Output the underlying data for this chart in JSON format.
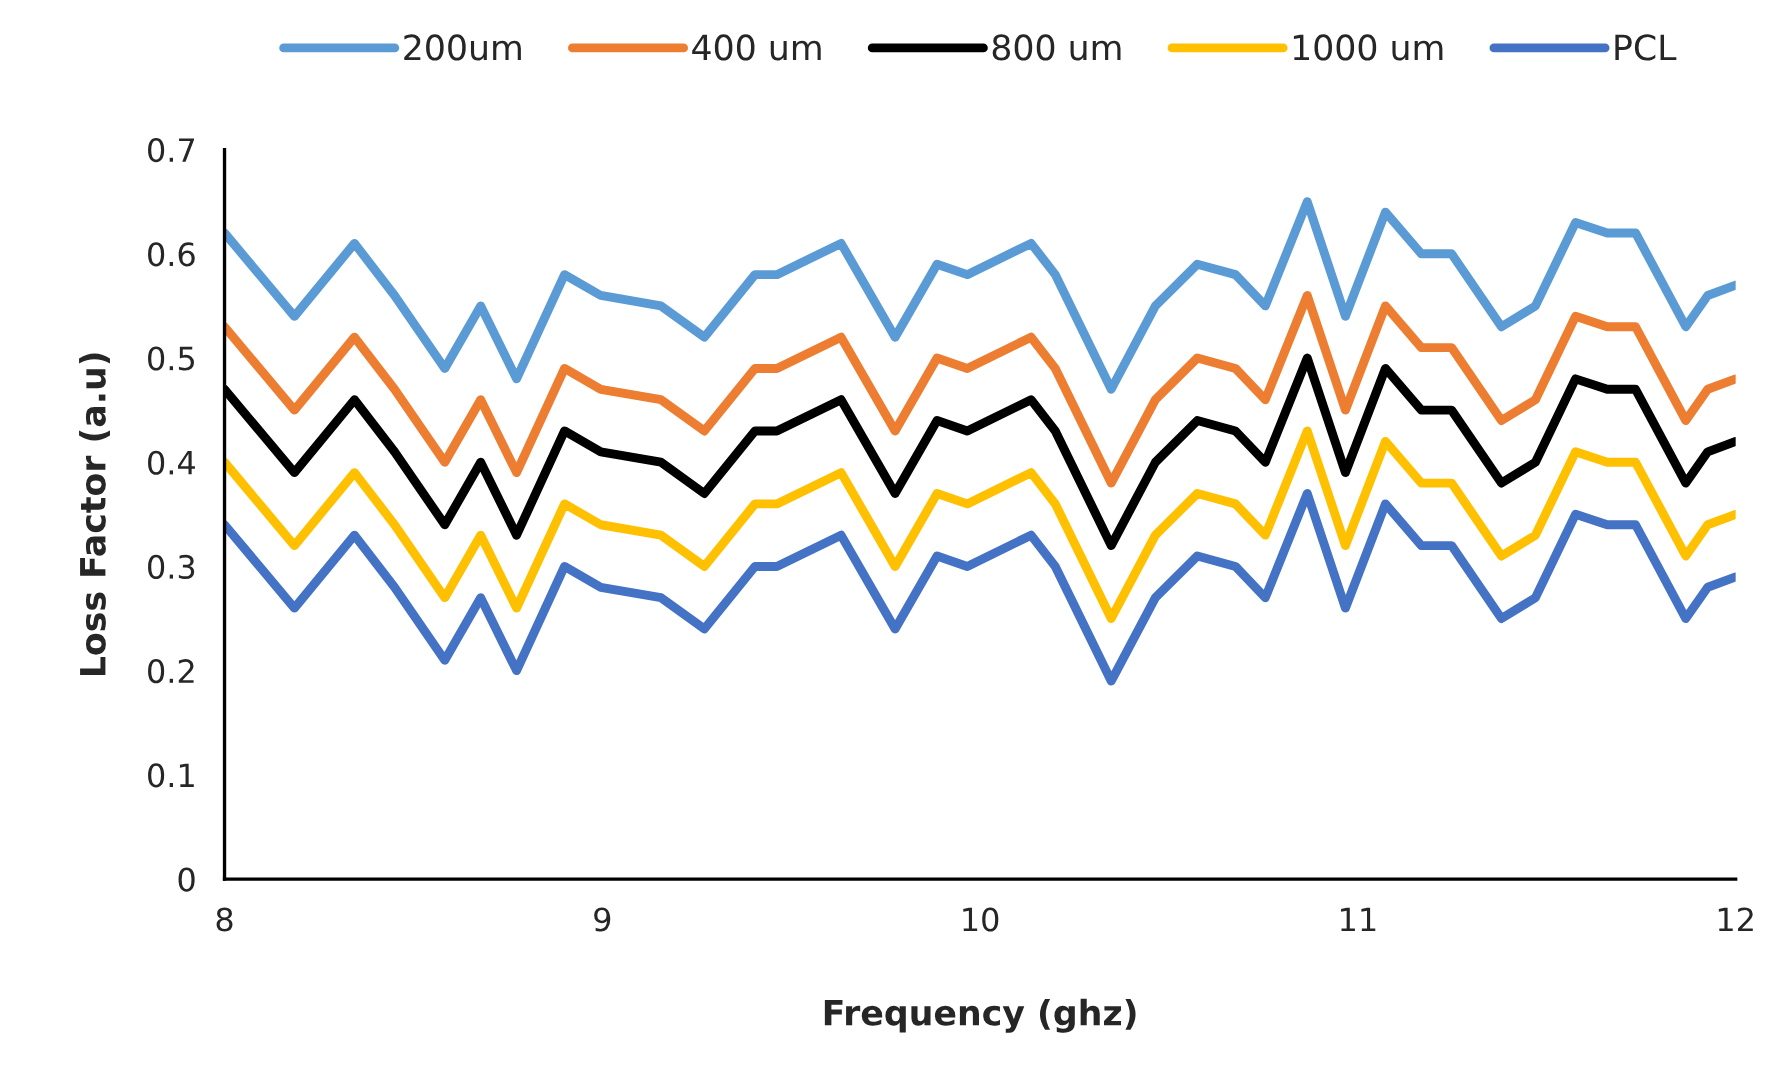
{
  "chart_data": {
    "type": "line",
    "xlabel": "Frequency (ghz)",
    "ylabel": "Loss Factor (a.u)",
    "x": [
      8.0,
      8.185,
      8.344,
      8.45,
      8.583,
      8.678,
      8.773,
      8.9,
      8.996,
      9.155,
      9.27,
      9.404,
      9.462,
      9.632,
      9.775,
      9.886,
      9.966,
      10.135,
      10.199,
      10.347,
      10.464,
      10.575,
      10.676,
      10.755,
      10.866,
      10.967,
      11.073,
      11.168,
      11.248,
      11.38,
      11.47,
      11.576,
      11.66,
      11.735,
      11.868,
      11.926,
      12.0
    ],
    "series": [
      {
        "name": "200um",
        "color": "#5b9bd5",
        "values": [
          0.62,
          0.54,
          0.61,
          0.56,
          0.49,
          0.55,
          0.48,
          0.58,
          0.56,
          0.55,
          0.52,
          0.58,
          0.58,
          0.61,
          0.52,
          0.59,
          0.58,
          0.61,
          0.58,
          0.47,
          0.55,
          0.59,
          0.58,
          0.55,
          0.65,
          0.54,
          0.64,
          0.6,
          0.6,
          0.53,
          0.55,
          0.63,
          0.62,
          0.62,
          0.53,
          0.56,
          0.57
        ]
      },
      {
        "name": "400 um",
        "color": "#ed7d31",
        "values": [
          0.53,
          0.45,
          0.52,
          0.47,
          0.4,
          0.46,
          0.39,
          0.49,
          0.47,
          0.46,
          0.43,
          0.49,
          0.49,
          0.52,
          0.43,
          0.5,
          0.49,
          0.52,
          0.49,
          0.38,
          0.46,
          0.5,
          0.49,
          0.46,
          0.56,
          0.45,
          0.55,
          0.51,
          0.51,
          0.44,
          0.46,
          0.54,
          0.53,
          0.53,
          0.44,
          0.47,
          0.48
        ]
      },
      {
        "name": "800 um",
        "color": "#000000",
        "values": [
          0.47,
          0.39,
          0.46,
          0.41,
          0.34,
          0.4,
          0.33,
          0.43,
          0.41,
          0.4,
          0.37,
          0.43,
          0.43,
          0.46,
          0.37,
          0.44,
          0.43,
          0.46,
          0.43,
          0.32,
          0.4,
          0.44,
          0.43,
          0.4,
          0.5,
          0.39,
          0.49,
          0.45,
          0.45,
          0.38,
          0.4,
          0.48,
          0.47,
          0.47,
          0.38,
          0.41,
          0.42
        ]
      },
      {
        "name": "1000 um",
        "color": "#ffc000",
        "values": [
          0.4,
          0.32,
          0.39,
          0.34,
          0.27,
          0.33,
          0.26,
          0.36,
          0.34,
          0.33,
          0.3,
          0.36,
          0.36,
          0.39,
          0.3,
          0.37,
          0.36,
          0.39,
          0.36,
          0.25,
          0.33,
          0.37,
          0.36,
          0.33,
          0.43,
          0.32,
          0.42,
          0.38,
          0.38,
          0.31,
          0.33,
          0.41,
          0.4,
          0.4,
          0.31,
          0.34,
          0.35
        ]
      },
      {
        "name": "PCL",
        "color": "#4472c4",
        "values": [
          0.34,
          0.26,
          0.33,
          0.28,
          0.21,
          0.27,
          0.2,
          0.3,
          0.28,
          0.27,
          0.24,
          0.3,
          0.3,
          0.33,
          0.24,
          0.31,
          0.3,
          0.33,
          0.3,
          0.19,
          0.27,
          0.31,
          0.3,
          0.27,
          0.37,
          0.26,
          0.36,
          0.32,
          0.32,
          0.25,
          0.27,
          0.35,
          0.34,
          0.34,
          0.25,
          0.28,
          0.29
        ]
      }
    ],
    "xlim": [
      8,
      12
    ],
    "xticks": [
      8,
      9,
      10,
      11,
      12
    ],
    "ylim": [
      0,
      0.7
    ],
    "yticks": [
      0,
      0.1,
      0.2,
      0.3,
      0.4,
      0.5,
      0.6,
      0.7
    ],
    "grid": false,
    "legend": "top",
    "marker": "none",
    "line_style": "solid"
  }
}
